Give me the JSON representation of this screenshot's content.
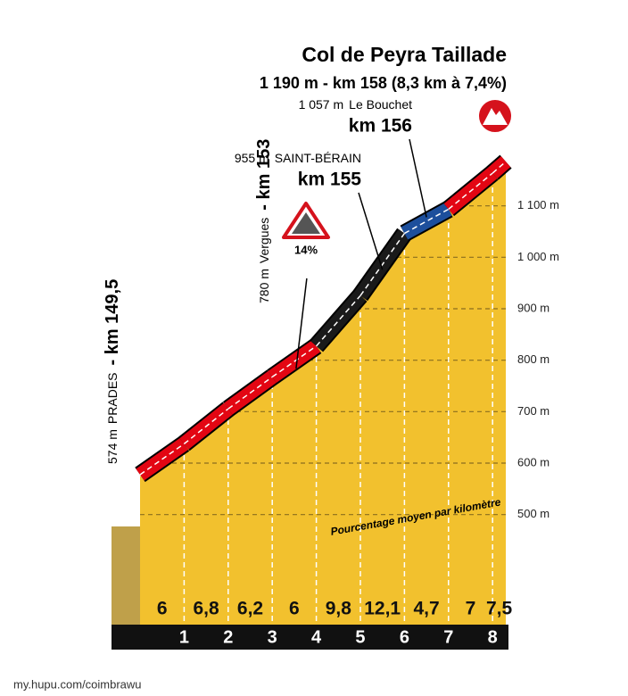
{
  "chart_data": {
    "type": "profile",
    "title": "Col de Peyra Taillade",
    "subtitle": "1 190 m  - km 158 (8,3 km à 7,4%)",
    "annotation": "Pourcentage moyen par kilomètre",
    "max_gradient_label": "14%",
    "values": [
      6,
      6.8,
      6.2,
      6,
      9.8,
      12.1,
      4.7,
      7,
      7.5
    ],
    "value_labels": [
      "6",
      "6,8",
      "6,2",
      "6",
      "9,8",
      "12,1",
      "4,7",
      "7",
      "7,5"
    ],
    "colors": [
      "#e30613",
      "#e30613",
      "#e30613",
      "#e30613",
      "#1a1a1a",
      "#1a1a1a",
      "#1d4f9c",
      "#e30613",
      "#e30613"
    ],
    "fill_color": "#f2c12e",
    "xlim": [
      0,
      8.3
    ],
    "xticks": [
      1,
      2,
      3,
      4,
      5,
      6,
      7,
      8
    ],
    "ylim": [
      300,
      1200
    ],
    "yticks": [
      {
        "value": 500,
        "label": "500 m"
      },
      {
        "value": 600,
        "label": "600 m"
      },
      {
        "value": 700,
        "label": "700 m"
      },
      {
        "value": 800,
        "label": "800 m"
      },
      {
        "value": 900,
        "label": "900 m"
      },
      {
        "value": 1000,
        "label": "1 000 m"
      },
      {
        "value": 1100,
        "label": "1 100 m"
      }
    ],
    "waypoints": [
      {
        "elevation": {
          "value": 574,
          "label": "574 m"
        },
        "place": "PRADES",
        "km": "- km 149,5"
      },
      {
        "elevation": {
          "value": 780,
          "label": "780 m"
        },
        "place": "Vergues",
        "km": "- km 153"
      },
      {
        "elevation": {
          "value": 955,
          "label": "955 m"
        },
        "place": "SAINT-BÉRAIN",
        "km": "km 155"
      },
      {
        "elevation": {
          "value": 1057,
          "label": "1 057 m"
        },
        "place": "Le Bouchet",
        "km": "km 156"
      }
    ],
    "watermark": "my.hupu.com/coimbrawu"
  }
}
